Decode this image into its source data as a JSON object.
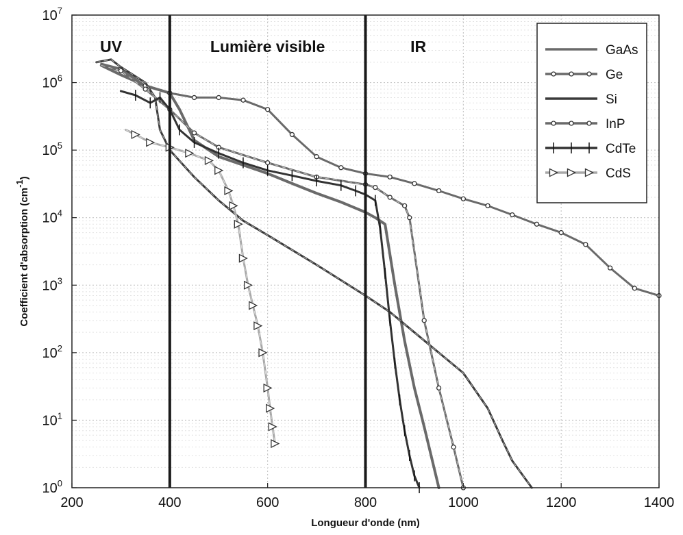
{
  "chart_data": {
    "type": "line",
    "xlabel": "Longueur d'onde (nm)",
    "ylabel": "Coefficient d'absorption (cm",
    "ylabel_sup": "-1",
    "ylabel_end": ")",
    "xlim": [
      200,
      1400
    ],
    "ylim": [
      1,
      10000000
    ],
    "yscale": "log",
    "grid": true,
    "legend_position": "top-right",
    "x_ticks": [
      200,
      400,
      600,
      800,
      1000,
      1200,
      1400
    ],
    "y_ticks": [
      {
        "value": 1,
        "base": "10",
        "exp": "0"
      },
      {
        "value": 10,
        "base": "10",
        "exp": "1"
      },
      {
        "value": 100,
        "base": "10",
        "exp": "2"
      },
      {
        "value": 1000,
        "base": "10",
        "exp": "3"
      },
      {
        "value": 10000,
        "base": "10",
        "exp": "4"
      },
      {
        "value": 100000,
        "base": "10",
        "exp": "5"
      },
      {
        "value": 1000000,
        "base": "10",
        "exp": "6"
      },
      {
        "value": 10000000,
        "base": "10",
        "exp": "7"
      }
    ],
    "region_dividers": [
      400,
      800
    ],
    "regions": [
      {
        "label": "UV",
        "x": 280
      },
      {
        "label": "Lumière visible",
        "x": 600
      },
      {
        "label": "IR",
        "x": 908
      }
    ],
    "series": [
      {
        "name": "GaAs",
        "marker": "none",
        "color": "#6a6a6a",
        "x": [
          260,
          300,
          350,
          400,
          420,
          450,
          500,
          550,
          600,
          650,
          700,
          750,
          800,
          820,
          840,
          860,
          880,
          900,
          920,
          950
        ],
        "y": [
          1800000,
          1300000,
          900000,
          700000,
          400000,
          140000,
          80000,
          60000,
          45000,
          32000,
          23000,
          17000,
          12000,
          10000,
          8000,
          1000,
          150,
          30,
          8,
          1
        ]
      },
      {
        "name": "Ge",
        "marker": "circle",
        "color": "#6a6a6a",
        "x": [
          260,
          300,
          350,
          400,
          450,
          500,
          550,
          600,
          650,
          700,
          750,
          800,
          850,
          900,
          950,
          1000,
          1050,
          1100,
          1150,
          1200,
          1250,
          1300,
          1350,
          1400
        ],
        "y": [
          1900000,
          1600000,
          900000,
          700000,
          600000,
          600000,
          550000,
          400000,
          170000,
          80000,
          55000,
          45000,
          40000,
          32000,
          25000,
          19000,
          15000,
          11000,
          8000,
          6000,
          4000,
          1800,
          900,
          700
        ]
      },
      {
        "name": "Si",
        "marker": "none",
        "color": "#3a3a3a",
        "x": [
          250,
          280,
          300,
          350,
          370,
          380,
          400,
          450,
          500,
          550,
          600,
          700,
          800,
          850,
          900,
          950,
          1000,
          1050,
          1080,
          1100,
          1140
        ],
        "y": [
          2000000,
          2200000,
          1700000,
          1000000,
          600000,
          200000,
          100000,
          40000,
          18000,
          9000,
          5500,
          2000,
          700,
          400,
          200,
          100,
          50,
          15,
          5,
          2.5,
          1
        ]
      },
      {
        "name": "InP",
        "marker": "circle",
        "color": "#6a6a6a",
        "x": [
          260,
          300,
          350,
          400,
          450,
          500,
          600,
          700,
          800,
          820,
          850,
          880,
          890,
          920,
          950,
          980,
          1000
        ],
        "y": [
          1800000,
          1500000,
          800000,
          400000,
          180000,
          110000,
          65000,
          40000,
          31000,
          28000,
          20000,
          15000,
          10000,
          300,
          30,
          4,
          1
        ]
      },
      {
        "name": "CdTe",
        "marker": "plus",
        "color": "#333333",
        "x": [
          300,
          330,
          360,
          380,
          400,
          420,
          450,
          500,
          550,
          600,
          650,
          700,
          750,
          780,
          800,
          820,
          830,
          840,
          850,
          860,
          870,
          880,
          890,
          900,
          910
        ],
        "y": [
          750000,
          650000,
          500000,
          600000,
          400000,
          200000,
          130000,
          90000,
          65000,
          50000,
          42000,
          35000,
          30000,
          25000,
          22000,
          18000,
          7000,
          1500,
          300,
          70,
          20,
          7,
          3,
          1.5,
          1
        ]
      },
      {
        "name": "CdS",
        "marker": "triangle",
        "color": "#a8a8a8",
        "x": [
          310,
          330,
          360,
          400,
          440,
          480,
          500,
          520,
          530,
          540,
          550,
          560,
          570,
          580,
          590,
          600,
          605,
          610,
          615
        ],
        "y": [
          200000,
          170000,
          130000,
          110000,
          90000,
          70000,
          50000,
          25000,
          15000,
          8000,
          2500,
          1000,
          500,
          250,
          100,
          30,
          15,
          8,
          4.5
        ]
      }
    ]
  }
}
